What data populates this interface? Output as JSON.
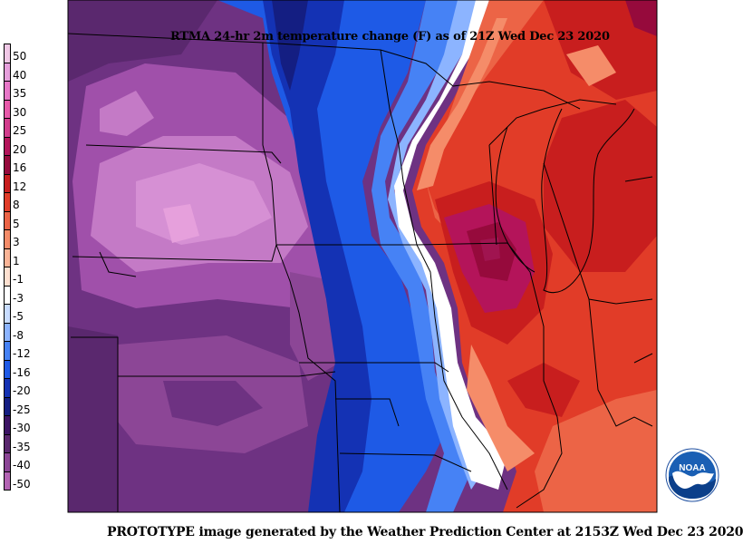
{
  "title": "RTMA 24-hr 2m temperature change (F) as of 21Z Wed Dec 23 2020",
  "footer": "PROTOTYPE image generated by the Weather Prediction Center at 2153Z Wed Dec 23 2020",
  "logo_text": "NOAA",
  "legend": {
    "labels": [
      "50",
      "40",
      "35",
      "30",
      "25",
      "20",
      "16",
      "12",
      "8",
      "5",
      "3",
      "1",
      "-1",
      "-3",
      "-5",
      "-8",
      "-12",
      "-16",
      "-20",
      "-25",
      "-30",
      "-35",
      "-40",
      "-50"
    ],
    "colors": [
      "#f0c8e6",
      "#e6a0dc",
      "#e878c8",
      "#e85aaa",
      "#d23c8c",
      "#b4145a",
      "#960a3c",
      "#c81e1e",
      "#e13c28",
      "#ec6446",
      "#f58c69",
      "#fab496",
      "#fde0d0",
      "#ffffff",
      "#c8dcff",
      "#8cb4ff",
      "#4682f5",
      "#1e5ae6",
      "#1432b4",
      "#141e82",
      "#3c1464",
      "#5a286e",
      "#8c4696",
      "#b464b4"
    ]
  },
  "colors": {
    "deep_purple": "#5a286e",
    "purple": "#7a3a8a",
    "light_purple": "#c880c8",
    "pink": "#e6a0dc",
    "blue": "#1e5ae6",
    "light_blue": "#8cb4ff",
    "white": "#ffffff",
    "salmon": "#f58c69",
    "red": "#e13c28",
    "dark_red": "#b4145a",
    "crimson": "#960a3c"
  }
}
